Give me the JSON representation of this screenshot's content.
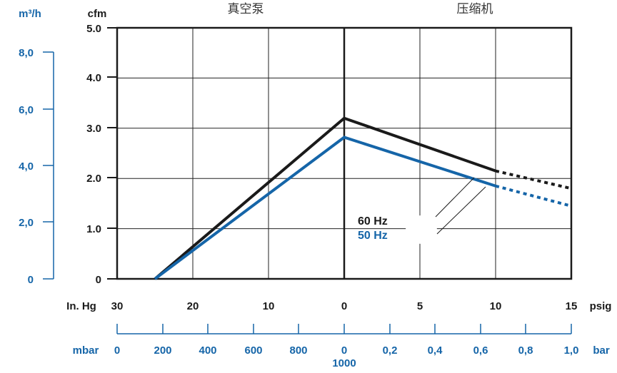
{
  "header": {
    "left_unit": "m³/h",
    "cfm_unit": "cfm",
    "region_left": "真空泵",
    "region_right": "压缩机"
  },
  "axes": {
    "y_cfm_ticks": [
      "0",
      "1.0",
      "2.0",
      "3.0",
      "4.0",
      "5.0"
    ],
    "y_m3h_ticks": [
      "0",
      "2,0",
      "4,0",
      "6,0",
      "8,0"
    ],
    "vacuum_label": "In. Hg",
    "vacuum_ticks": [
      "30",
      "20",
      "10",
      "0"
    ],
    "pressure_ticks": [
      "5",
      "10",
      "15"
    ],
    "pressure_unit": "psig",
    "mbar_label": "mbar",
    "mbar_ticks": [
      "0",
      "200",
      "400",
      "600",
      "800",
      "0"
    ],
    "mbar_sub": "1000",
    "bar_ticks": [
      "0,2",
      "0,4",
      "0,6",
      "0,8",
      "1,0"
    ],
    "bar_unit": "bar"
  },
  "legend": {
    "hz60": "60 Hz",
    "hz50": "50 Hz"
  },
  "colors": {
    "black": "#1a1a1a",
    "blue": "#1565a8",
    "grid": "#222222"
  },
  "chart_data": {
    "type": "line",
    "x_axis": "In. Hg vacuum (left) / psig pressure (right)",
    "xlabel": "In. Hg / psig",
    "ylabel": "cfm",
    "ylim": [
      0,
      5.0
    ],
    "series": [
      {
        "name": "60 Hz",
        "color": "#1a1a1a",
        "points": [
          {
            "pos": -25,
            "cfm": 0
          },
          {
            "pos": 0,
            "cfm": 3.2
          },
          {
            "pos": 10,
            "cfm": 2.15
          }
        ],
        "dotted_points": [
          {
            "pos": 10,
            "cfm": 2.15
          },
          {
            "pos": 15,
            "cfm": 1.8
          }
        ]
      },
      {
        "name": "50 Hz",
        "color": "#1565a8",
        "points": [
          {
            "pos": -25,
            "cfm": 0
          },
          {
            "pos": 0,
            "cfm": 2.82
          },
          {
            "pos": 10,
            "cfm": 1.85
          }
        ],
        "dotted_points": [
          {
            "pos": 10,
            "cfm": 1.85
          },
          {
            "pos": 15,
            "cfm": 1.45
          }
        ]
      }
    ]
  }
}
